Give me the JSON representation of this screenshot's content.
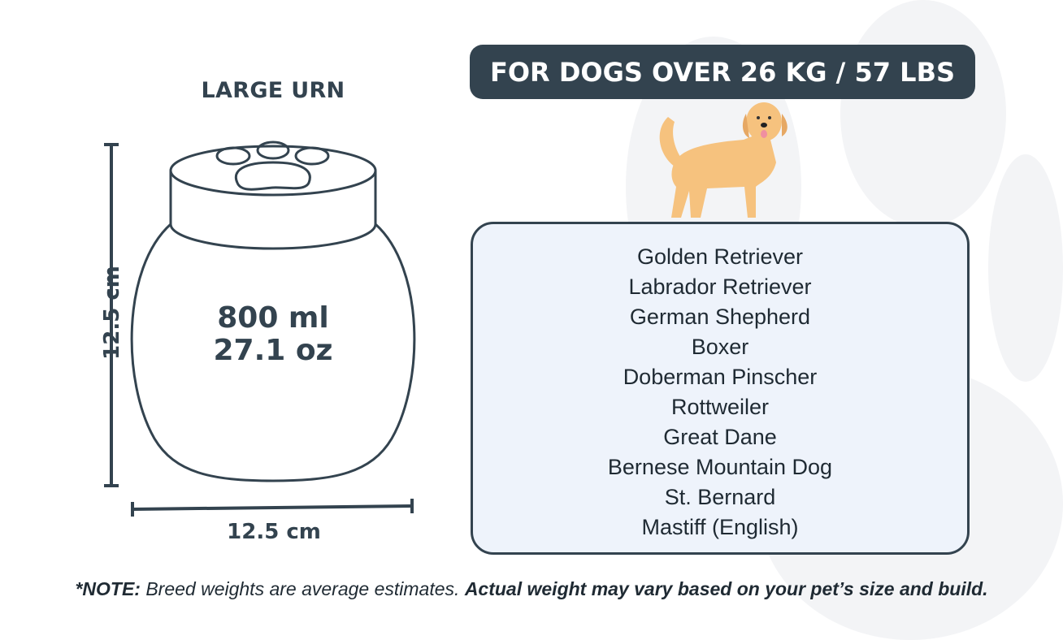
{
  "colors": {
    "dark": "#33434f",
    "box_bg": "#eef3fb",
    "paw_bg": "#f3f4f6",
    "dog": "#f6c27e"
  },
  "urn": {
    "title": "LARGE URN",
    "volume_ml": "800 ml",
    "volume_oz": "27.1 oz",
    "height": "12.5 cm",
    "width": "12.5 cm",
    "lid_icon": "paw-print-icon"
  },
  "header": {
    "label": "FOR DOGS OVER 26 KG / 57 LBS"
  },
  "breeds": [
    "Golden Retriever",
    "Labrador Retriever",
    "German Shepherd",
    "Boxer",
    "Doberman Pinscher",
    "Rottweiler",
    "Great Dane",
    "Bernese Mountain Dog",
    "St. Bernard",
    "Mastiff (English)"
  ],
  "note": {
    "prefix": "*NOTE:",
    "middle": " Breed weights are average estimates. ",
    "emphasis": "Actual weight may vary based on your pet’s size and build."
  }
}
